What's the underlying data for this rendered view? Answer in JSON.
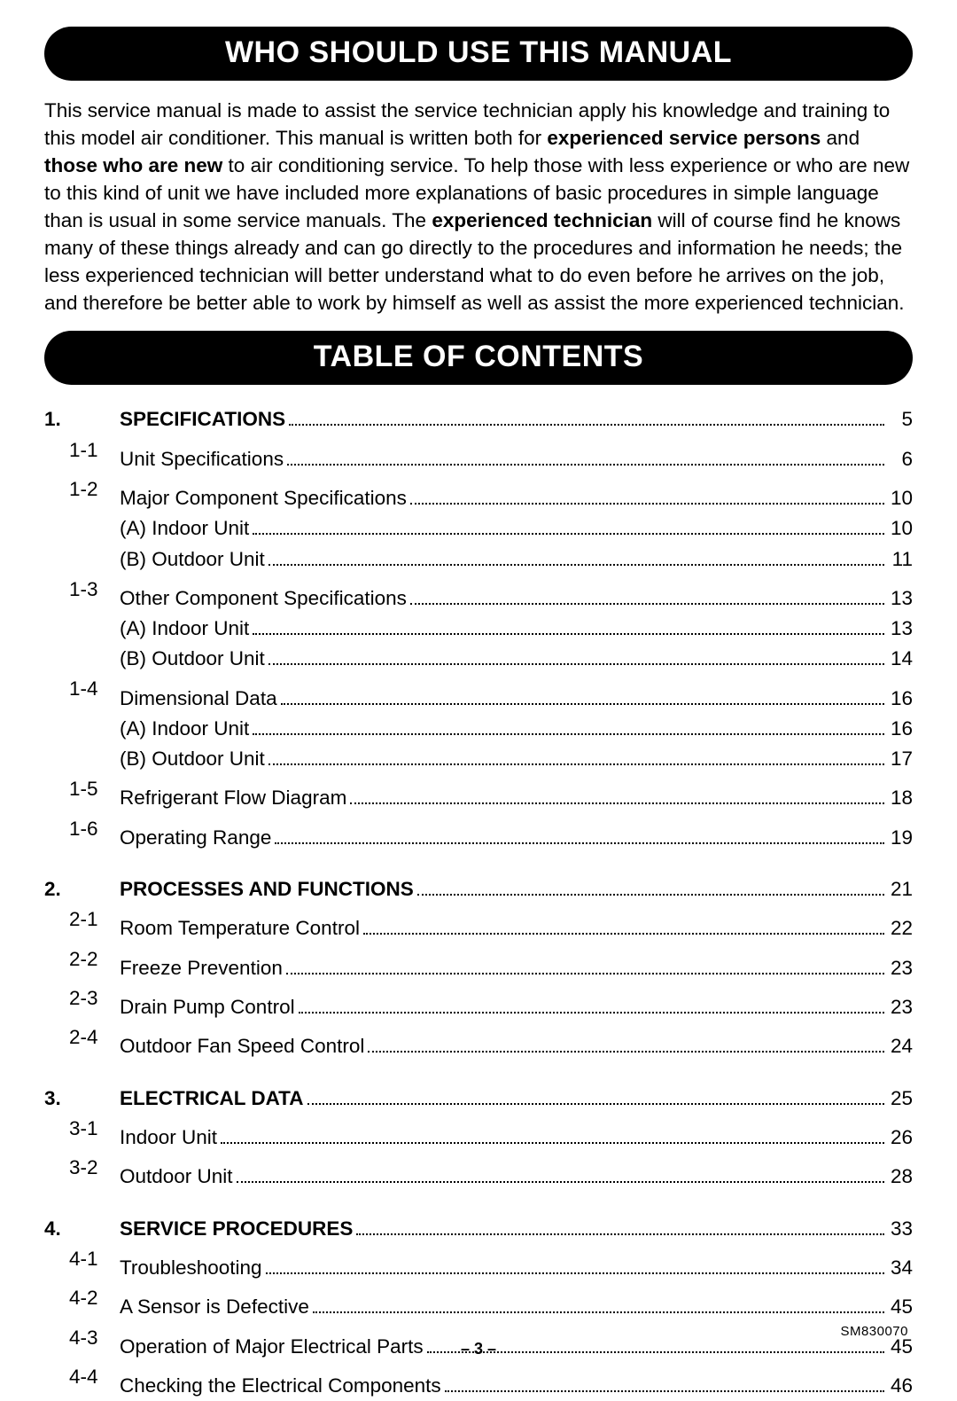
{
  "banner1": "WHO SHOULD USE THIS MANUAL",
  "intro": {
    "t1": "This service manual is made to assist the service technician apply his knowledge and training to this model air conditioner. This manual is written both for ",
    "b1": "experienced service persons",
    "t2": " and ",
    "b2": "those who are new",
    "t3": " to air conditioning service. To help those with less experience or who are new to this kind of unit we have included more explanations of basic procedures in simple language than is usual in some service manuals. The ",
    "b3": "experienced technician",
    "t4": " will of course find he knows many of these things already and can go directly to the procedures and information he needs; the less experienced technician will better understand what to do even before he arrives on the job, and therefore be better able to work by himself as well as assist the more experienced technician."
  },
  "banner2": "TABLE OF CONTENTS",
  "toc": [
    {
      "num": "1.",
      "title": "SPECIFICATIONS",
      "page": "5",
      "items": [
        {
          "sub": "1-1",
          "title": "Unit Specifications",
          "page": "6"
        },
        {
          "sub": "1-2",
          "title": "Major Component Specifications",
          "page": "10",
          "items": [
            {
              "title": "(A) Indoor Unit",
              "page": "10"
            },
            {
              "title": "(B) Outdoor Unit",
              "page": "11"
            }
          ]
        },
        {
          "sub": "1-3",
          "title": "Other Component Specifications",
          "page": "13",
          "items": [
            {
              "title": "(A) Indoor Unit",
              "page": "13"
            },
            {
              "title": "(B) Outdoor Unit",
              "page": "14"
            }
          ]
        },
        {
          "sub": "1-4",
          "title": "Dimensional Data",
          "page": "16",
          "items": [
            {
              "title": "(A) Indoor Unit",
              "page": "16"
            },
            {
              "title": "(B) Outdoor Unit",
              "page": "17"
            }
          ]
        },
        {
          "sub": "1-5",
          "title": "Refrigerant Flow Diagram",
          "page": "18"
        },
        {
          "sub": "1-6",
          "title": "Operating Range",
          "page": "19"
        }
      ]
    },
    {
      "num": "2.",
      "title": "PROCESSES AND FUNCTIONS",
      "page": "21",
      "items": [
        {
          "sub": "2-1",
          "title": "Room Temperature Control",
          "page": "22"
        },
        {
          "sub": "2-2",
          "title": "Freeze Prevention",
          "page": "23"
        },
        {
          "sub": "2-3",
          "title": "Drain Pump Control",
          "page": "23"
        },
        {
          "sub": "2-4",
          "title": "Outdoor Fan Speed Control",
          "page": "24"
        }
      ]
    },
    {
      "num": "3.",
      "title": "ELECTRICAL DATA",
      "page": "25",
      "items": [
        {
          "sub": "3-1",
          "title": "Indoor Unit",
          "page": "26"
        },
        {
          "sub": "3-2",
          "title": "Outdoor Unit",
          "page": "28"
        }
      ]
    },
    {
      "num": "4.",
      "title": "SERVICE PROCEDURES",
      "page": "33",
      "items": [
        {
          "sub": "4-1",
          "title": "Troubleshooting",
          "page": "34"
        },
        {
          "sub": "4-2",
          "title": "A Sensor is Defective",
          "page": "45"
        },
        {
          "sub": "4-3",
          "title": "Operation of Major Electrical Parts",
          "page": "45"
        },
        {
          "sub": "4-4",
          "title": "Checking the Electrical Components",
          "page": "46"
        }
      ]
    }
  ],
  "footer": {
    "page": "– 3 –",
    "docid": "SM830070"
  }
}
